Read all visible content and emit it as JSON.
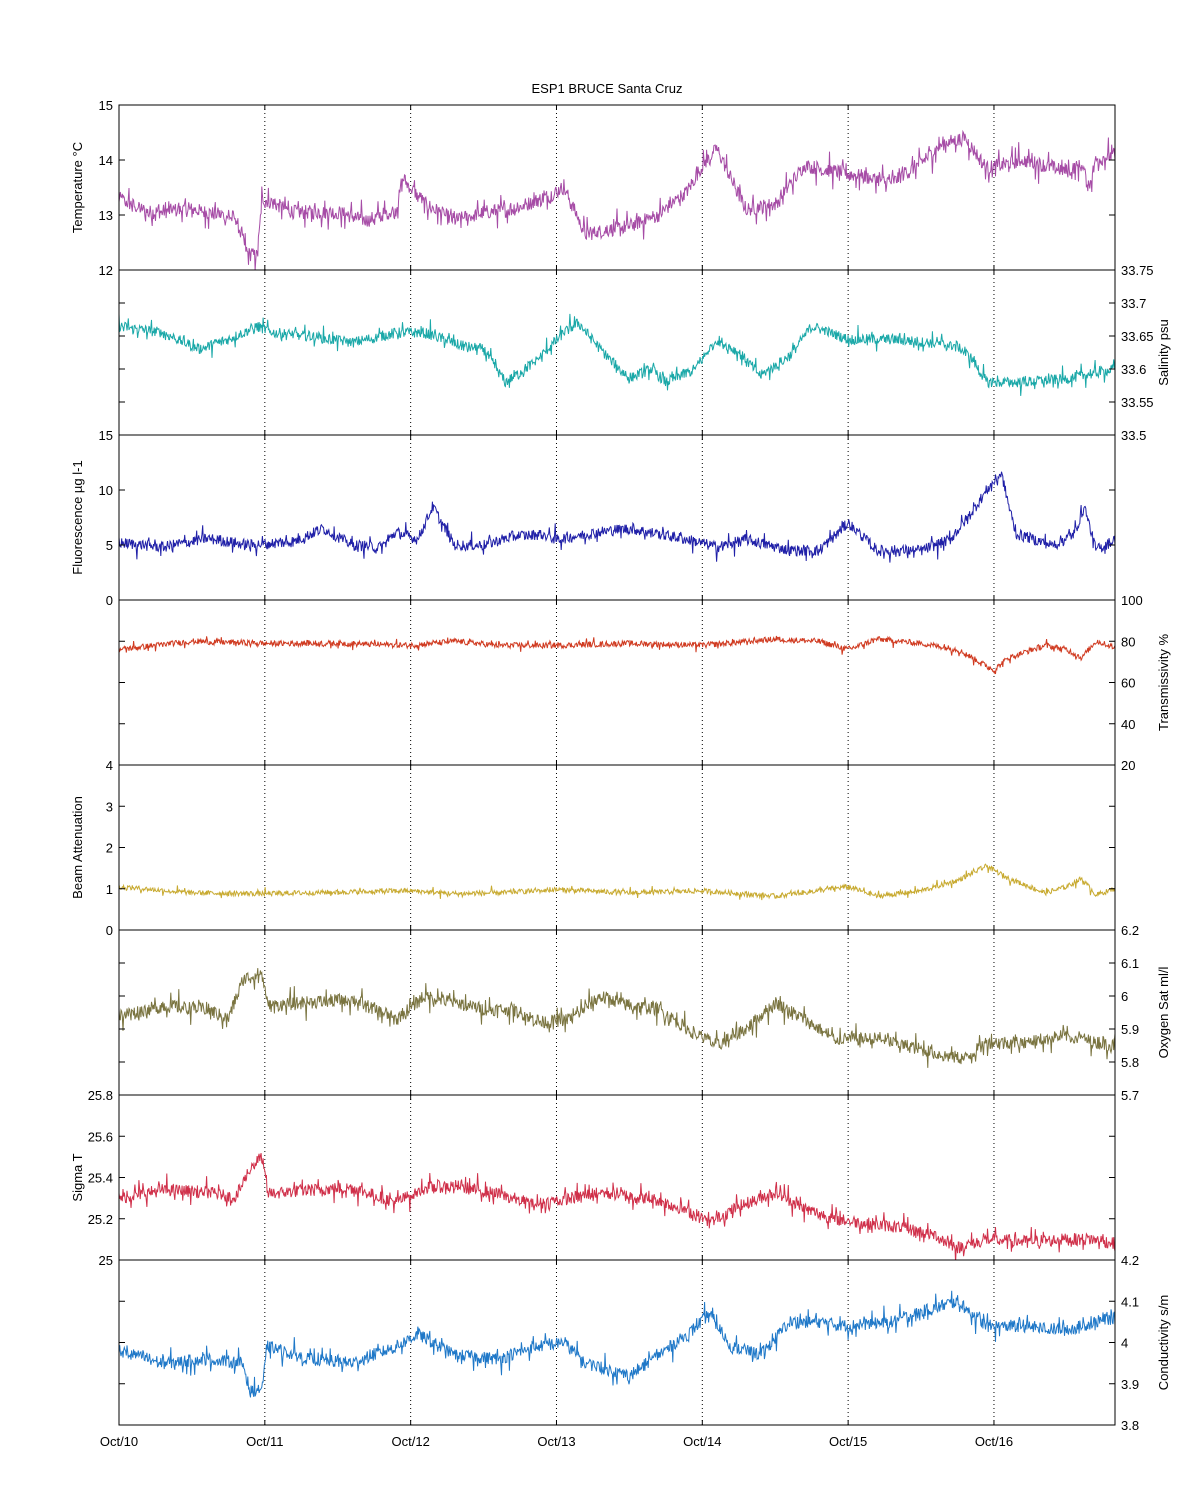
{
  "chart_data": {
    "type": "line",
    "title": "ESP1 BRUCE Santa Cruz",
    "x_tick_labels": [
      "Oct/10",
      "Oct/11",
      "Oct/12",
      "Oct/13",
      "Oct/14",
      "Oct/15",
      "Oct/16"
    ],
    "xlim_days": [
      10,
      16.83
    ],
    "xlabel": "",
    "grid": "vertical dotted lines at each day",
    "panels": [
      {
        "name": "Temperature °C",
        "ylabel": "Temperature °C",
        "axis_side": "left",
        "ylim": [
          12,
          15
        ],
        "ticks": [
          12,
          13,
          14,
          15
        ],
        "tick_labels": [
          "12",
          "13",
          "14",
          "15"
        ],
        "color": "#a64ca6",
        "noise": 0.13,
        "spike_every": 5,
        "points": [
          [
            10,
            13.3
          ],
          [
            10.2,
            13.05
          ],
          [
            10.5,
            13.1
          ],
          [
            10.8,
            12.95
          ],
          [
            10.88,
            12.3
          ],
          [
            10.95,
            12.25
          ],
          [
            10.98,
            13.3
          ],
          [
            11.2,
            13.05
          ],
          [
            11.5,
            13.05
          ],
          [
            11.7,
            12.9
          ],
          [
            11.9,
            13.1
          ],
          [
            11.95,
            13.65
          ],
          [
            12.1,
            13.2
          ],
          [
            12.3,
            12.9
          ],
          [
            12.5,
            13.05
          ],
          [
            12.7,
            13.1
          ],
          [
            12.95,
            13.35
          ],
          [
            13.05,
            13.5
          ],
          [
            13.2,
            12.65
          ],
          [
            13.5,
            12.8
          ],
          [
            13.7,
            13.0
          ],
          [
            13.9,
            13.45
          ],
          [
            14.0,
            13.9
          ],
          [
            14.1,
            14.2
          ],
          [
            14.3,
            13.1
          ],
          [
            14.5,
            13.2
          ],
          [
            14.7,
            13.9
          ],
          [
            14.9,
            13.8
          ],
          [
            15.1,
            13.7
          ],
          [
            15.3,
            13.6
          ],
          [
            15.5,
            13.95
          ],
          [
            15.65,
            14.3
          ],
          [
            15.8,
            14.4
          ],
          [
            15.95,
            13.85
          ],
          [
            16.2,
            14.0
          ],
          [
            16.5,
            13.8
          ],
          [
            16.6,
            13.9
          ],
          [
            16.65,
            13.5
          ],
          [
            16.7,
            14.0
          ],
          [
            16.83,
            14.1
          ]
        ]
      },
      {
        "name": "Salinity psu",
        "ylabel": "Salinity psu",
        "axis_side": "right",
        "ylim": [
          33.5,
          33.75
        ],
        "ticks": [
          33.5,
          33.55,
          33.6,
          33.65,
          33.7,
          33.75
        ],
        "tick_labels": [
          "33.5",
          "33.55",
          "33.6",
          "33.65",
          "33.7",
          "33.75"
        ],
        "color": "#1aa8a8",
        "noise": 0.008,
        "spike_every": 7,
        "points": [
          [
            10,
            33.665
          ],
          [
            10.3,
            33.655
          ],
          [
            10.55,
            33.63
          ],
          [
            10.75,
            33.645
          ],
          [
            10.95,
            33.665
          ],
          [
            11.05,
            33.655
          ],
          [
            11.3,
            33.65
          ],
          [
            11.6,
            33.64
          ],
          [
            11.9,
            33.655
          ],
          [
            12.1,
            33.655
          ],
          [
            12.35,
            33.635
          ],
          [
            12.5,
            33.63
          ],
          [
            12.65,
            33.58
          ],
          [
            12.85,
            33.61
          ],
          [
            13.05,
            33.655
          ],
          [
            13.15,
            33.67
          ],
          [
            13.3,
            33.63
          ],
          [
            13.5,
            33.585
          ],
          [
            13.65,
            33.6
          ],
          [
            13.75,
            33.58
          ],
          [
            13.95,
            33.6
          ],
          [
            14.1,
            33.645
          ],
          [
            14.25,
            33.625
          ],
          [
            14.4,
            33.59
          ],
          [
            14.6,
            33.62
          ],
          [
            14.75,
            33.665
          ],
          [
            15.0,
            33.645
          ],
          [
            15.3,
            33.645
          ],
          [
            15.55,
            33.64
          ],
          [
            15.75,
            33.635
          ],
          [
            15.85,
            33.615
          ],
          [
            15.95,
            33.58
          ],
          [
            16.2,
            33.58
          ],
          [
            16.5,
            33.585
          ],
          [
            16.83,
            33.6
          ]
        ]
      },
      {
        "name": "Fluorescence µg l-1",
        "ylabel": "Fluorescence µg l-1",
        "axis_side": "left",
        "ylim": [
          0,
          15
        ],
        "ticks": [
          0,
          5,
          10,
          15
        ],
        "tick_labels": [
          "0",
          "5",
          "10",
          "15"
        ],
        "color": "#2020a8",
        "noise": 0.5,
        "spike_every": 9,
        "points": [
          [
            10,
            5.2
          ],
          [
            10.3,
            4.8
          ],
          [
            10.6,
            5.6
          ],
          [
            10.9,
            5.0
          ],
          [
            11.2,
            5.3
          ],
          [
            11.4,
            6.5
          ],
          [
            11.6,
            5.0
          ],
          [
            11.8,
            4.8
          ],
          [
            11.9,
            6.2
          ],
          [
            12.05,
            5.5
          ],
          [
            12.15,
            8.5
          ],
          [
            12.3,
            5.0
          ],
          [
            12.5,
            5.0
          ],
          [
            12.7,
            5.8
          ],
          [
            12.9,
            6.0
          ],
          [
            13.0,
            5.5
          ],
          [
            13.3,
            6.2
          ],
          [
            13.5,
            6.5
          ],
          [
            13.7,
            6.0
          ],
          [
            13.9,
            5.5
          ],
          [
            14.1,
            4.8
          ],
          [
            14.3,
            5.5
          ],
          [
            14.6,
            4.5
          ],
          [
            14.8,
            4.5
          ],
          [
            15.0,
            7.0
          ],
          [
            15.2,
            4.5
          ],
          [
            15.5,
            4.5
          ],
          [
            15.7,
            5.5
          ],
          [
            15.85,
            8.0
          ],
          [
            15.95,
            10.0
          ],
          [
            16.05,
            11.5
          ],
          [
            16.15,
            6.0
          ],
          [
            16.4,
            5.0
          ],
          [
            16.55,
            6.0
          ],
          [
            16.62,
            8.5
          ],
          [
            16.7,
            4.5
          ],
          [
            16.83,
            5.5
          ]
        ]
      },
      {
        "name": "Transmissivity %",
        "ylabel": "Transmissivity %",
        "axis_side": "right",
        "ylim": [
          20,
          100
        ],
        "ticks": [
          20,
          40,
          60,
          80,
          100
        ],
        "tick_labels": [
          "20",
          "40",
          "60",
          "80",
          "100"
        ],
        "color": "#d03a20",
        "noise": 1.4,
        "spike_every": 11,
        "points": [
          [
            10,
            76
          ],
          [
            10.5,
            80
          ],
          [
            11,
            79
          ],
          [
            11.5,
            79
          ],
          [
            12,
            78
          ],
          [
            12.3,
            80
          ],
          [
            12.6,
            78
          ],
          [
            13,
            78
          ],
          [
            13.5,
            79
          ],
          [
            14,
            78
          ],
          [
            14.5,
            81
          ],
          [
            14.8,
            80
          ],
          [
            15,
            76
          ],
          [
            15.2,
            81
          ],
          [
            15.5,
            79
          ],
          [
            15.75,
            76
          ],
          [
            15.85,
            72
          ],
          [
            16.0,
            66
          ],
          [
            16.1,
            72
          ],
          [
            16.35,
            78
          ],
          [
            16.5,
            76
          ],
          [
            16.6,
            72
          ],
          [
            16.7,
            80
          ],
          [
            16.83,
            77
          ]
        ]
      },
      {
        "name": "Beam Attenuation",
        "ylabel": "Beam Attenuation",
        "axis_side": "left",
        "ylim": [
          0,
          4
        ],
        "ticks": [
          0,
          1,
          2,
          3,
          4
        ],
        "tick_labels": [
          "0",
          "1",
          "2",
          "3",
          "4"
        ],
        "color": "#c8aa30",
        "noise": 0.06,
        "spike_every": 11,
        "points": [
          [
            10,
            1.05
          ],
          [
            10.5,
            0.9
          ],
          [
            11,
            0.88
          ],
          [
            11.5,
            0.92
          ],
          [
            12,
            0.95
          ],
          [
            12.3,
            0.88
          ],
          [
            12.6,
            0.9
          ],
          [
            13,
            0.98
          ],
          [
            13.5,
            0.9
          ],
          [
            14,
            0.95
          ],
          [
            14.5,
            0.82
          ],
          [
            15,
            1.05
          ],
          [
            15.2,
            0.82
          ],
          [
            15.5,
            0.95
          ],
          [
            15.75,
            1.2
          ],
          [
            15.95,
            1.55
          ],
          [
            16.1,
            1.25
          ],
          [
            16.35,
            0.9
          ],
          [
            16.5,
            1.05
          ],
          [
            16.6,
            1.25
          ],
          [
            16.7,
            0.85
          ],
          [
            16.83,
            1.0
          ]
        ]
      },
      {
        "name": "Oxygen Sat ml/l",
        "ylabel": "Oxygen Sat ml/l",
        "axis_side": "right",
        "ylim": [
          5.7,
          6.2
        ],
        "ticks": [
          5.7,
          5.8,
          5.9,
          6.0,
          6.1,
          6.2
        ],
        "tick_labels": [
          "5.7",
          "5.8",
          "5.9",
          "6",
          "6.1",
          "6.2"
        ],
        "color": "#7a7440",
        "noise": 0.02,
        "spike_every": 6,
        "points": [
          [
            10,
            5.94
          ],
          [
            10.3,
            5.97
          ],
          [
            10.6,
            5.96
          ],
          [
            10.75,
            5.93
          ],
          [
            10.85,
            6.05
          ],
          [
            10.98,
            6.07
          ],
          [
            11.02,
            5.97
          ],
          [
            11.3,
            5.98
          ],
          [
            11.6,
            5.99
          ],
          [
            11.9,
            5.93
          ],
          [
            12.1,
            6.0
          ],
          [
            12.3,
            5.98
          ],
          [
            12.5,
            5.96
          ],
          [
            12.7,
            5.96
          ],
          [
            12.9,
            5.92
          ],
          [
            13.1,
            5.93
          ],
          [
            13.3,
            6.0
          ],
          [
            13.5,
            5.97
          ],
          [
            13.7,
            5.96
          ],
          [
            13.9,
            5.9
          ],
          [
            14.1,
            5.85
          ],
          [
            14.3,
            5.9
          ],
          [
            14.5,
            5.98
          ],
          [
            14.7,
            5.93
          ],
          [
            14.9,
            5.87
          ],
          [
            15.2,
            5.87
          ],
          [
            15.4,
            5.85
          ],
          [
            15.65,
            5.82
          ],
          [
            15.8,
            5.81
          ],
          [
            15.95,
            5.86
          ],
          [
            16.2,
            5.86
          ],
          [
            16.5,
            5.88
          ],
          [
            16.7,
            5.86
          ],
          [
            16.83,
            5.85
          ]
        ]
      },
      {
        "name": "Sigma T",
        "ylabel": "Sigma T",
        "axis_side": "left",
        "ylim": [
          25,
          25.8
        ],
        "ticks": [
          25,
          25.2,
          25.4,
          25.6,
          25.8
        ],
        "tick_labels": [
          "25",
          "25.2",
          "25.4",
          "25.6",
          "25.8"
        ],
        "color": "#d0304a",
        "noise": 0.03,
        "spike_every": 6,
        "points": [
          [
            10,
            25.3
          ],
          [
            10.3,
            25.34
          ],
          [
            10.6,
            25.33
          ],
          [
            10.8,
            25.3
          ],
          [
            10.9,
            25.45
          ],
          [
            10.98,
            25.5
          ],
          [
            11.02,
            25.32
          ],
          [
            11.3,
            25.34
          ],
          [
            11.6,
            25.35
          ],
          [
            11.9,
            25.28
          ],
          [
            12.1,
            25.35
          ],
          [
            12.3,
            25.36
          ],
          [
            12.6,
            25.32
          ],
          [
            12.85,
            25.27
          ],
          [
            13.1,
            25.3
          ],
          [
            13.3,
            25.33
          ],
          [
            13.5,
            25.31
          ],
          [
            13.7,
            25.29
          ],
          [
            13.9,
            25.24
          ],
          [
            14.05,
            25.18
          ],
          [
            14.25,
            25.26
          ],
          [
            14.5,
            25.33
          ],
          [
            14.7,
            25.25
          ],
          [
            14.9,
            25.2
          ],
          [
            15.1,
            25.18
          ],
          [
            15.35,
            25.16
          ],
          [
            15.6,
            25.12
          ],
          [
            15.75,
            25.06
          ],
          [
            15.95,
            25.1
          ],
          [
            16.2,
            25.09
          ],
          [
            16.5,
            25.1
          ],
          [
            16.7,
            25.1
          ],
          [
            16.83,
            25.08
          ]
        ]
      },
      {
        "name": "Conductivity s/m",
        "ylabel": "Conductivity s/m",
        "axis_side": "right",
        "ylim": [
          3.8,
          4.2
        ],
        "ticks": [
          3.8,
          3.9,
          4.0,
          4.1,
          4.2
        ],
        "tick_labels": [
          "3.8",
          "3.9",
          "4",
          "4.1",
          "4.2"
        ],
        "color": "#1f78c8",
        "noise": 0.015,
        "spike_every": 6,
        "points": [
          [
            10,
            3.98
          ],
          [
            10.3,
            3.95
          ],
          [
            10.6,
            3.96
          ],
          [
            10.85,
            3.95
          ],
          [
            10.9,
            3.88
          ],
          [
            10.98,
            3.89
          ],
          [
            11.02,
            3.99
          ],
          [
            11.3,
            3.96
          ],
          [
            11.6,
            3.95
          ],
          [
            11.9,
            3.99
          ],
          [
            12.05,
            4.02
          ],
          [
            12.3,
            3.97
          ],
          [
            12.6,
            3.96
          ],
          [
            12.85,
            3.99
          ],
          [
            13.05,
            4.0
          ],
          [
            13.2,
            3.95
          ],
          [
            13.5,
            3.92
          ],
          [
            13.7,
            3.97
          ],
          [
            13.9,
            4.02
          ],
          [
            14.05,
            4.07
          ],
          [
            14.2,
            3.99
          ],
          [
            14.4,
            3.97
          ],
          [
            14.6,
            4.05
          ],
          [
            14.8,
            4.05
          ],
          [
            15.0,
            4.04
          ],
          [
            15.3,
            4.05
          ],
          [
            15.55,
            4.08
          ],
          [
            15.75,
            4.1
          ],
          [
            15.95,
            4.04
          ],
          [
            16.2,
            4.04
          ],
          [
            16.5,
            4.03
          ],
          [
            16.7,
            4.05
          ],
          [
            16.83,
            4.06
          ]
        ]
      }
    ]
  }
}
